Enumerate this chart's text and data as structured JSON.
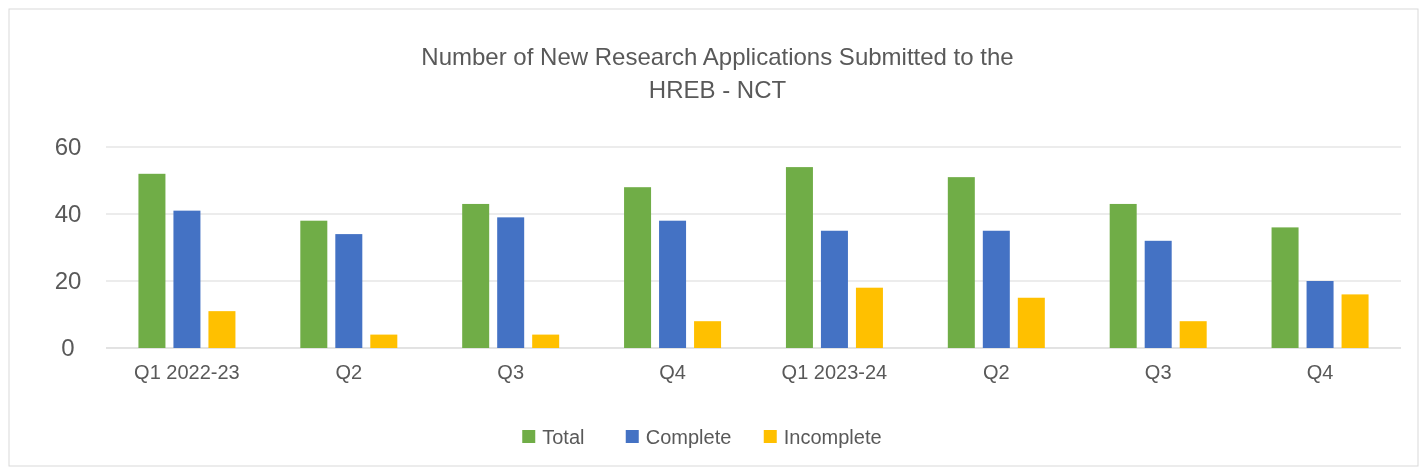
{
  "chart_data": {
    "type": "bar",
    "title": "Number of New Research Applications Submitted to the\nHREB - NCT",
    "categories": [
      "Q1 2022-23",
      "Q2",
      "Q3",
      "Q4",
      "Q1 2023-24",
      "Q2",
      "Q3",
      "Q4"
    ],
    "series": [
      {
        "name": "Total",
        "color": "#70ad47",
        "values": [
          52,
          38,
          43,
          48,
          54,
          51,
          43,
          36
        ]
      },
      {
        "name": "Complete",
        "color": "#4472c4",
        "values": [
          41,
          34,
          39,
          38,
          35,
          35,
          32,
          20
        ]
      },
      {
        "name": "Incomplete",
        "color": "#ffc000",
        "values": [
          11,
          4,
          4,
          8,
          18,
          15,
          8,
          16
        ]
      }
    ],
    "ylim": [
      0,
      60
    ],
    "yticks": [
      0,
      20,
      40,
      60
    ],
    "grid": true,
    "legend": "bottom"
  }
}
